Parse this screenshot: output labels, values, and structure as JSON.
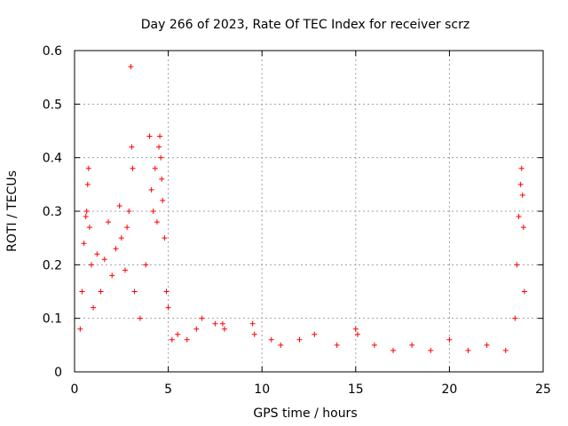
{
  "chart_data": {
    "type": "scatter",
    "title": "Day 266 of 2023, Rate Of TEC Index for receiver scrz",
    "xlabel": "GPS time / hours",
    "ylabel": "ROTI / TECUs",
    "xlim": [
      0,
      25
    ],
    "ylim": [
      0,
      0.6
    ],
    "xticks": [
      0,
      5,
      10,
      15,
      20,
      25
    ],
    "yticks": [
      0,
      0.1,
      0.2,
      0.3,
      0.4,
      0.5,
      0.6
    ],
    "xtick_labels": [
      "0",
      "5",
      "10",
      "15",
      "20",
      "25"
    ],
    "ytick_labels": [
      "0",
      "0.1",
      "0.2",
      "0.3",
      "0.4",
      "0.5",
      "0.6"
    ],
    "grid": true,
    "marker": "+",
    "marker_color": "#ff0000",
    "x_range_of_data": [
      0,
      24
    ],
    "series": [
      {
        "points": [
          [
            0.3,
            0.08
          ],
          [
            0.4,
            0.15
          ],
          [
            0.5,
            0.24
          ],
          [
            0.6,
            0.29
          ],
          [
            0.65,
            0.3
          ],
          [
            0.7,
            0.35
          ],
          [
            0.75,
            0.38
          ],
          [
            0.8,
            0.27
          ],
          [
            0.9,
            0.2
          ],
          [
            1.0,
            0.12
          ],
          [
            1.2,
            0.22
          ],
          [
            1.4,
            0.15
          ],
          [
            1.6,
            0.21
          ],
          [
            1.8,
            0.28
          ],
          [
            2.0,
            0.18
          ],
          [
            2.2,
            0.23
          ],
          [
            2.4,
            0.31
          ],
          [
            2.5,
            0.25
          ],
          [
            2.7,
            0.19
          ],
          [
            2.8,
            0.27
          ],
          [
            2.9,
            0.3
          ],
          [
            3.0,
            0.57
          ],
          [
            3.05,
            0.42
          ],
          [
            3.1,
            0.38
          ],
          [
            3.2,
            0.15
          ],
          [
            3.5,
            0.1
          ],
          [
            3.8,
            0.2
          ],
          [
            4.0,
            0.44
          ],
          [
            4.1,
            0.34
          ],
          [
            4.2,
            0.3
          ],
          [
            4.3,
            0.38
          ],
          [
            4.4,
            0.28
          ],
          [
            4.5,
            0.42
          ],
          [
            4.55,
            0.44
          ],
          [
            4.6,
            0.4
          ],
          [
            4.65,
            0.36
          ],
          [
            4.7,
            0.32
          ],
          [
            4.8,
            0.25
          ],
          [
            4.9,
            0.15
          ],
          [
            5.0,
            0.12
          ],
          [
            5.2,
            0.06
          ],
          [
            5.5,
            0.07
          ],
          [
            6.0,
            0.06
          ],
          [
            6.5,
            0.08
          ],
          [
            6.8,
            0.1
          ],
          [
            7.5,
            0.09
          ],
          [
            7.9,
            0.09
          ],
          [
            8.0,
            0.08
          ],
          [
            9.5,
            0.09
          ],
          [
            9.6,
            0.07
          ],
          [
            10.5,
            0.06
          ],
          [
            11.0,
            0.05
          ],
          [
            12.0,
            0.06
          ],
          [
            12.8,
            0.07
          ],
          [
            14.0,
            0.05
          ],
          [
            15.0,
            0.08
          ],
          [
            15.1,
            0.07
          ],
          [
            16.0,
            0.05
          ],
          [
            17.0,
            0.04
          ],
          [
            18.0,
            0.05
          ],
          [
            19.0,
            0.04
          ],
          [
            20.0,
            0.06
          ],
          [
            21.0,
            0.04
          ],
          [
            22.0,
            0.05
          ],
          [
            23.0,
            0.04
          ],
          [
            23.5,
            0.1
          ],
          [
            23.6,
            0.2
          ],
          [
            23.7,
            0.29
          ],
          [
            23.8,
            0.35
          ],
          [
            23.85,
            0.38
          ],
          [
            23.9,
            0.33
          ],
          [
            23.95,
            0.27
          ],
          [
            24.0,
            0.15
          ]
        ]
      }
    ]
  }
}
